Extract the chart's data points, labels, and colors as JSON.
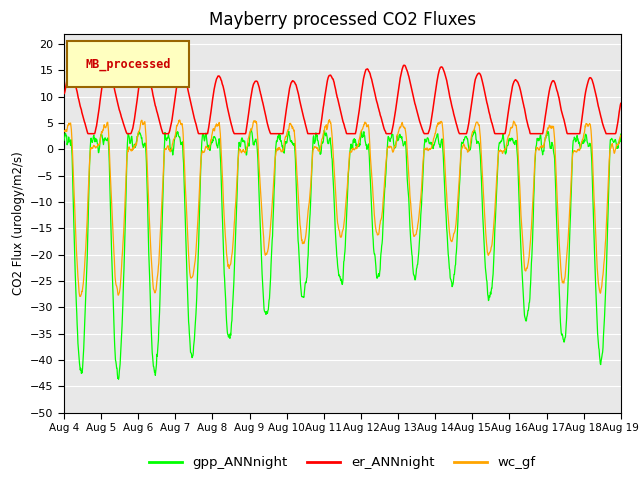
{
  "title": "Mayberry processed CO2 Fluxes",
  "ylabel": "CO2 Flux (urology/m2/s)",
  "xlabel": "",
  "ylim": [
    -50,
    22
  ],
  "yticks": [
    20,
    15,
    10,
    5,
    0,
    -5,
    -10,
    -15,
    -20,
    -25,
    -30,
    -35,
    -40,
    -45,
    -50
  ],
  "x_tick_labels": [
    "Aug 4",
    "Aug 5",
    "Aug 6",
    "Aug 7",
    "Aug 8",
    "Aug 9",
    "Aug 10",
    "Aug 11",
    "Aug 12",
    "Aug 13",
    "Aug 14",
    "Aug 15",
    "Aug 16",
    "Aug 17",
    "Aug 18",
    "Aug 19"
  ],
  "color_gpp": "#00FF00",
  "color_er": "#FF0000",
  "color_wc": "#FFA500",
  "legend_label": "MB_processed",
  "legend_bg": "#FFFFC0",
  "legend_edge": "#996600",
  "legend_text_color": "#CC0000",
  "bg_color": "#E8E8E8",
  "fig_bg": "#FFFFFF",
  "grid_color": "#FFFFFF",
  "n_days": 15,
  "pts_per_day": 96
}
